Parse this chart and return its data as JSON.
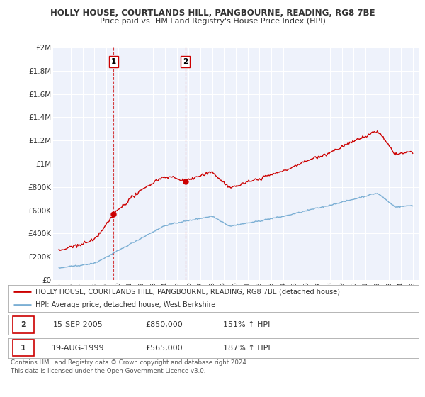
{
  "title": "HOLLY HOUSE, COURTLANDS HILL, PANGBOURNE, READING, RG8 7BE",
  "subtitle": "Price paid vs. HM Land Registry's House Price Index (HPI)",
  "legend_line1": "HOLLY HOUSE, COURTLANDS HILL, PANGBOURNE, READING, RG8 7BE (detached house)",
  "legend_line2": "HPI: Average price, detached house, West Berkshire",
  "table_rows": [
    {
      "num": "1",
      "date": "19-AUG-1999",
      "price": "£565,000",
      "hpi": "187% ↑ HPI"
    },
    {
      "num": "2",
      "date": "15-SEP-2005",
      "price": "£850,000",
      "hpi": "151% ↑ HPI"
    }
  ],
  "footnote": "Contains HM Land Registry data © Crown copyright and database right 2024.\nThis data is licensed under the Open Government Licence v3.0.",
  "sale1_year": 1999.63,
  "sale1_price": 565000,
  "sale2_year": 2005.71,
  "sale2_price": 850000,
  "hpi_color": "#7bafd4",
  "property_color": "#cc0000",
  "vline_color": "#cc0000",
  "background_color": "#ffffff",
  "plot_bg_color": "#eef2fb",
  "grid_color": "#ffffff",
  "ylim": [
    0,
    2000000
  ],
  "xlim_start": 1994.5,
  "xlim_end": 2025.5,
  "yticks": [
    0,
    200000,
    400000,
    600000,
    800000,
    1000000,
    1200000,
    1400000,
    1600000,
    1800000,
    2000000
  ],
  "ytick_labels": [
    "£0",
    "£200K",
    "£400K",
    "£600K",
    "£800K",
    "£1M",
    "£1.2M",
    "£1.4M",
    "£1.6M",
    "£1.8M",
    "£2M"
  ],
  "xticks": [
    1995,
    1996,
    1997,
    1998,
    1999,
    2000,
    2001,
    2002,
    2003,
    2004,
    2005,
    2006,
    2007,
    2008,
    2009,
    2010,
    2011,
    2012,
    2013,
    2014,
    2015,
    2016,
    2017,
    2018,
    2019,
    2020,
    2021,
    2022,
    2023,
    2024,
    2025
  ]
}
